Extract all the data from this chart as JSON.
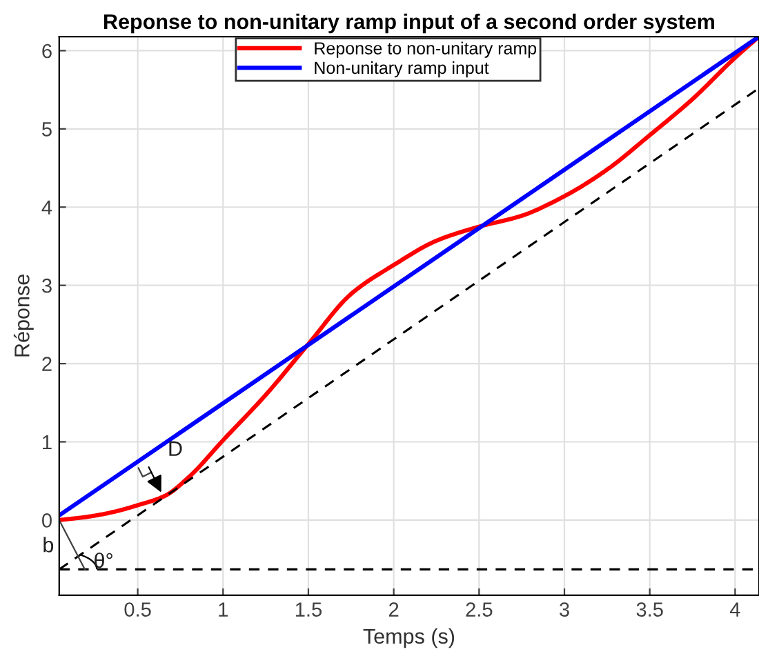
{
  "chart_data": {
    "type": "line",
    "title": "Reponse to non-unitary ramp input of a second order system",
    "xlabel": "Temps (s)",
    "ylabel": "Réponse",
    "series": [
      {
        "name": "Reponse to non-unitary ramp",
        "color": "#ff0000",
        "x": [
          0.04,
          0.2,
          0.35,
          0.5,
          0.66,
          0.8,
          1,
          1.25,
          1.5,
          1.75,
          2,
          2.25,
          2.5,
          2.75,
          3,
          3.25,
          3.5,
          3.75,
          4,
          4.14
        ],
        "values": [
          0,
          0.04,
          0.1,
          0.19,
          0.31,
          0.55,
          1.02,
          1.6,
          2.25,
          2.89,
          3.26,
          3.57,
          3.75,
          3.89,
          4.14,
          4.48,
          4.92,
          5.38,
          5.91,
          6.18
        ]
      },
      {
        "name": "Non-unitary ramp input",
        "color": "#0000ff",
        "x": [
          0.04,
          4.14
        ],
        "values": [
          0.06,
          6.18
        ]
      },
      {
        "color": "#000000",
        "line_style": "dashed",
        "x": [
          0.04,
          4.14
        ],
        "values": [
          -0.63,
          5.52
        ]
      },
      {
        "color": "#000000",
        "line_style": "dashed",
        "x": [
          0.04,
          4.14
        ],
        "values": [
          -0.63,
          -0.63
        ]
      }
    ],
    "annotations": [
      "D",
      "b",
      "θ°"
    ],
    "xlim": [
      0.04,
      4.14
    ],
    "ylim": [
      -0.96,
      6.18
    ],
    "xticks": [
      0.5,
      1,
      1.5,
      2,
      2.5,
      3,
      3.5,
      4
    ],
    "yticks": [
      0,
      1,
      2,
      3,
      4,
      5,
      6
    ],
    "grid": true,
    "legend": "top"
  }
}
